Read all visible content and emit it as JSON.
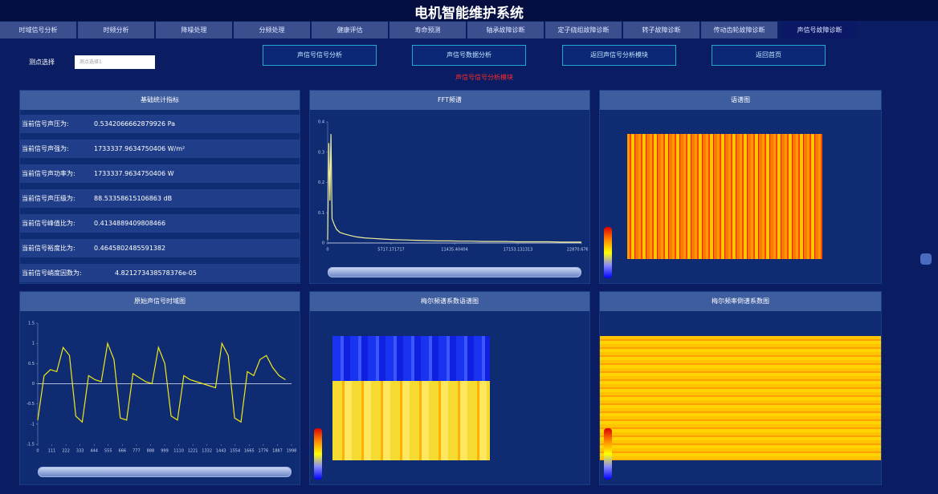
{
  "header": {
    "title": "电机智能维护系统"
  },
  "tabs": [
    "时域信号分析",
    "时频分析",
    "降噪处理",
    "分频处理",
    "健康评估",
    "寿命预测",
    "轴承故障诊断",
    "定子绕组故障诊断",
    "转子故障诊断",
    "传动齿轮故障诊断",
    "声信号故障诊断"
  ],
  "controls": {
    "label": "测点选择",
    "select": "测点选择1",
    "buttons": [
      "声信号信号分析",
      "声信号数据分析",
      "返回声信号分析模块",
      "返回首页"
    ],
    "status": "声信号信号分析模块"
  },
  "stats": {
    "title": "基础统计指标",
    "rows": [
      {
        "label": "当前信号声压为:",
        "value": "0.5342066662879926 Pa"
      },
      {
        "label": "当前信号声强为:",
        "value": "1733337.9634750406 W/m²"
      },
      {
        "label": "当前信号声功率为:",
        "value": "1733337.9634750406 W"
      },
      {
        "label": "当前信号声压级为:",
        "value": "88.53358615106863 dB"
      },
      {
        "label": "当前信号峰值比为:",
        "value": "0.4134889409808466"
      },
      {
        "label": "当前信号裕度比为:",
        "value": "0.4645802485591382"
      },
      {
        "label": "当前信号峭度因数为:",
        "value": "4.821273438578376e-05"
      }
    ]
  },
  "chart_data": [
    {
      "type": "line",
      "title": "FFT频谱",
      "color": "#f2ef9a",
      "x": [
        0,
        100,
        200,
        300,
        400,
        600,
        800,
        1100,
        1500,
        2000,
        2600,
        3300,
        4100,
        5000,
        6000,
        7000,
        8000,
        9000,
        10000,
        11000,
        12000,
        13000,
        14000,
        15000,
        16000,
        17000,
        18000,
        19000,
        20000,
        21000,
        22000,
        22870
      ],
      "values": [
        0.01,
        0.33,
        0.14,
        0.36,
        0.08,
        0.06,
        0.045,
        0.035,
        0.03,
        0.025,
        0.02,
        0.017,
        0.015,
        0.013,
        0.011,
        0.01,
        0.009,
        0.008,
        0.007,
        0.007,
        0.006,
        0.006,
        0.005,
        0.005,
        0.005,
        0.004,
        0.004,
        0.004,
        0.004,
        0.003,
        0.003,
        0.003
      ],
      "xlim": [
        0,
        22870.676767
      ],
      "ylim": [
        0,
        0.4
      ],
      "xticks": [
        0,
        5717.171717,
        11435.40404,
        17153.131313,
        22870.676767
      ],
      "yticks": [
        0,
        0.1,
        0.2,
        0.3,
        0.4
      ]
    },
    {
      "type": "image",
      "title": "语谱图"
    },
    {
      "type": "line",
      "title": "原始声信号时域图",
      "color": "#f0e81a",
      "x": [
        0,
        50,
        100,
        150,
        200,
        250,
        300,
        350,
        400,
        450,
        500,
        550,
        600,
        650,
        700,
        750,
        800,
        850,
        900,
        950,
        1000,
        1050,
        1100,
        1150,
        1200,
        1250,
        1300,
        1350,
        1400,
        1450,
        1500,
        1550,
        1600,
        1650,
        1700,
        1750,
        1800,
        1850,
        1900,
        1950
      ],
      "values": [
        -0.9,
        0.2,
        0.35,
        0.3,
        0.9,
        0.7,
        -0.8,
        -0.95,
        0.2,
        0.1,
        0.05,
        1.0,
        0.6,
        -0.85,
        -0.9,
        0.25,
        0.15,
        0.05,
        0.0,
        0.9,
        0.5,
        -0.8,
        -0.9,
        0.2,
        0.1,
        0.05,
        0.0,
        -0.05,
        -0.1,
        1.0,
        0.7,
        -0.85,
        -0.95,
        0.3,
        0.2,
        0.6,
        0.7,
        0.4,
        0.2,
        0.1
      ],
      "xlim": [
        0,
        1998
      ],
      "ylim": [
        -1.5,
        1.5
      ],
      "xticks": [
        0,
        111,
        222,
        333,
        444,
        555,
        666,
        777,
        888,
        999,
        1110,
        1221,
        1332,
        1443,
        1554,
        1665,
        1776,
        1887,
        1998
      ],
      "yticks": [
        -1.5,
        -1,
        -0.5,
        0,
        0.5,
        1,
        1.5
      ]
    },
    {
      "type": "image",
      "title": "梅尔频谱系数语谱图"
    },
    {
      "type": "image",
      "title": "梅尔频率倒谱系数图"
    }
  ]
}
